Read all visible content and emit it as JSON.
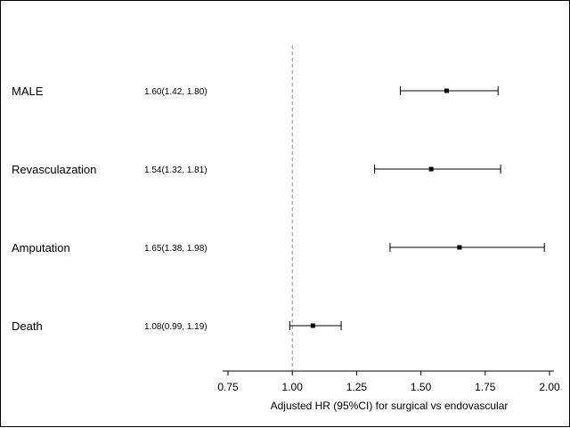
{
  "chart_data": {
    "type": "scatter",
    "subtype": "forest-plot",
    "xlabel": "Adjusted HR (95%CI) for surgical vs endovascular",
    "xlim": [
      0.75,
      2.0
    ],
    "xticks": [
      0.75,
      1.0,
      1.25,
      1.5,
      1.75,
      2.0
    ],
    "xtick_labels": [
      "0.75",
      "1.00",
      "1.25",
      "1.50",
      "1.75",
      "2.00"
    ],
    "reference_line": 1.0,
    "grid": false,
    "rows": [
      {
        "name": "MALE",
        "label": "1.60(1.42, 1.80)",
        "hr": 1.6,
        "lower": 1.42,
        "upper": 1.8
      },
      {
        "name": "Revasculazation",
        "label": "1.54(1.32, 1.81)",
        "hr": 1.54,
        "lower": 1.32,
        "upper": 1.81
      },
      {
        "name": "Amputation",
        "label": "1.65(1.38, 1.98)",
        "hr": 1.65,
        "lower": 1.38,
        "upper": 1.98
      },
      {
        "name": "Death",
        "label": "1.08(0.99, 1.19)",
        "hr": 1.08,
        "lower": 0.99,
        "upper": 1.19
      }
    ],
    "colors": {
      "marker": "#000000",
      "reference_line": "#888888"
    }
  }
}
